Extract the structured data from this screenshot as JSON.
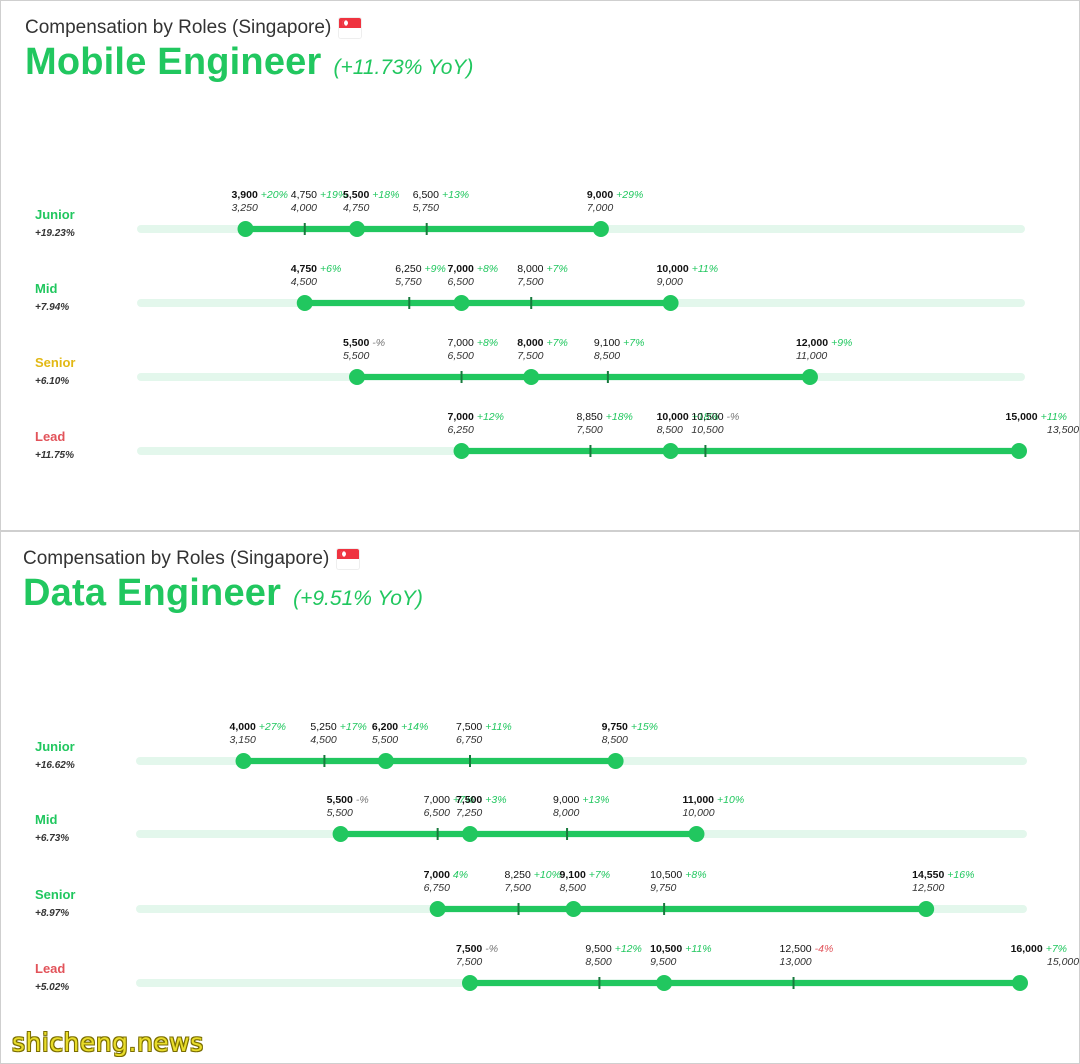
{
  "colors": {
    "green": "#21c75f",
    "track": "#e3f7ec",
    "junior": "#21c75f",
    "mid": "#21c75f",
    "senior": "#e2b814",
    "lead": "#e2535a",
    "negative": "#e2535a"
  },
  "watermark": "shicheng.news",
  "panels": [
    {
      "subtitle": "Compensation by Roles (Singapore)",
      "flag_icon": "singapore-flag-icon",
      "title": "Mobile Engineer",
      "yoy": "(+11.73% YoY)"
    },
    {
      "subtitle": "Compensation by Roles (Singapore)",
      "flag_icon": "singapore-flag-icon",
      "title": "Data Engineer",
      "yoy": "(+9.51% YoY)"
    }
  ],
  "chart_data": [
    {
      "type": "range",
      "title": "Mobile Engineer",
      "xlim": [
        2400,
        15000
      ],
      "rows": [
        {
          "level": "Junior",
          "level_color": "junior",
          "change": "+19.23%",
          "points": [
            {
              "value": 3900,
              "label": "3,900",
              "change": "+20%",
              "prev": "3,250",
              "kind": "end",
              "bold": true
            },
            {
              "value": 4750,
              "label": "4,750",
              "change": "+19%",
              "prev": "4,000",
              "kind": "tick",
              "bold": false
            },
            {
              "value": 5500,
              "label": "5,500",
              "change": "+18%",
              "prev": "4,750",
              "kind": "dot",
              "bold": true
            },
            {
              "value": 6500,
              "label": "6,500",
              "change": "+13%",
              "prev": "5,750",
              "kind": "tick",
              "bold": false
            },
            {
              "value": 9000,
              "label": "9,000",
              "change": "+29%",
              "prev": "7,000",
              "kind": "end",
              "bold": true
            }
          ]
        },
        {
          "level": "Mid",
          "level_color": "mid",
          "change": "+7.94%",
          "points": [
            {
              "value": 4750,
              "label": "4,750",
              "change": "+6%",
              "prev": "4,500",
              "kind": "end",
              "bold": true
            },
            {
              "value": 6250,
              "label": "6,250",
              "change": "+9%",
              "prev": "5,750",
              "kind": "tick",
              "bold": false
            },
            {
              "value": 7000,
              "label": "7,000",
              "change": "+8%",
              "prev": "6,500",
              "kind": "dot",
              "bold": true
            },
            {
              "value": 8000,
              "label": "8,000",
              "change": "+7%",
              "prev": "7,500",
              "kind": "tick",
              "bold": false
            },
            {
              "value": 10000,
              "label": "10,000",
              "change": "+11%",
              "prev": "9,000",
              "kind": "end",
              "bold": true
            }
          ]
        },
        {
          "level": "Senior",
          "level_color": "senior",
          "change": "+6.10%",
          "points": [
            {
              "value": 5500,
              "label": "5,500",
              "change": "-%",
              "prev": "5,500",
              "kind": "end",
              "bold": true
            },
            {
              "value": 7000,
              "label": "7,000",
              "change": "+8%",
              "prev": "6,500",
              "kind": "tick",
              "bold": false
            },
            {
              "value": 8000,
              "label": "8,000",
              "change": "+7%",
              "prev": "7,500",
              "kind": "dot",
              "bold": true
            },
            {
              "value": 9100,
              "label": "9,100",
              "change": "+7%",
              "prev": "8,500",
              "kind": "tick",
              "bold": false
            },
            {
              "value": 12000,
              "label": "12,000",
              "change": "+9%",
              "prev": "11,000",
              "kind": "end",
              "bold": true
            }
          ]
        },
        {
          "level": "Lead",
          "level_color": "lead",
          "change": "+11.75%",
          "points": [
            {
              "value": 7000,
              "label": "7,000",
              "change": "+12%",
              "prev": "6,250",
              "kind": "end",
              "bold": true
            },
            {
              "value": 8850,
              "label": "8,850",
              "change": "+18%",
              "prev": "7,500",
              "kind": "tick",
              "bold": false
            },
            {
              "value": 10000,
              "label": "10,000",
              "change": "+18%",
              "prev": "8,500",
              "kind": "dot",
              "bold": true
            },
            {
              "value": 10500,
              "label": "10,500",
              "change": "-%",
              "prev": "10,500",
              "kind": "tick",
              "bold": false
            },
            {
              "value": 15000,
              "label": "15,000",
              "change": "+11%",
              "prev": "13,500",
              "kind": "end",
              "bold": true
            }
          ]
        }
      ]
    },
    {
      "type": "range",
      "title": "Data Engineer",
      "xlim": [
        2400,
        16000
      ],
      "rows": [
        {
          "level": "Junior",
          "level_color": "junior",
          "change": "+16.62%",
          "points": [
            {
              "value": 4000,
              "label": "4,000",
              "change": "+27%",
              "prev": "3,150",
              "kind": "end",
              "bold": true
            },
            {
              "value": 5250,
              "label": "5,250",
              "change": "+17%",
              "prev": "4,500",
              "kind": "tick",
              "bold": false
            },
            {
              "value": 6200,
              "label": "6,200",
              "change": "+14%",
              "prev": "5,500",
              "kind": "dot",
              "bold": true
            },
            {
              "value": 7500,
              "label": "7,500",
              "change": "+11%",
              "prev": "6,750",
              "kind": "tick",
              "bold": false
            },
            {
              "value": 9750,
              "label": "9,750",
              "change": "+15%",
              "prev": "8,500",
              "kind": "end",
              "bold": true
            }
          ]
        },
        {
          "level": "Mid",
          "level_color": "mid",
          "change": "+6.73%",
          "points": [
            {
              "value": 5500,
              "label": "5,500",
              "change": "-%",
              "prev": "5,500",
              "kind": "end",
              "bold": true
            },
            {
              "value": 7000,
              "label": "7,000",
              "change": "+7%",
              "prev": "6,500",
              "kind": "tick",
              "bold": false
            },
            {
              "value": 7500,
              "label": "7,500",
              "change": "+3%",
              "prev": "7,250",
              "kind": "dot",
              "bold": true
            },
            {
              "value": 9000,
              "label": "9,000",
              "change": "+13%",
              "prev": "8,000",
              "kind": "tick",
              "bold": false
            },
            {
              "value": 11000,
              "label": "11,000",
              "change": "+10%",
              "prev": "10,000",
              "kind": "end",
              "bold": true
            }
          ]
        },
        {
          "level": "Senior",
          "level_color": "mid",
          "change": "+8.97%",
          "points": [
            {
              "value": 7000,
              "label": "7,000",
              "change": "4%",
              "prev": "6,750",
              "kind": "end",
              "bold": true
            },
            {
              "value": 8250,
              "label": "8,250",
              "change": "+10%",
              "prev": "7,500",
              "kind": "tick",
              "bold": false
            },
            {
              "value": 9100,
              "label": "9,100",
              "change": "+7%",
              "prev": "8,500",
              "kind": "dot",
              "bold": true
            },
            {
              "value": 10500,
              "label": "10,500",
              "change": "+8%",
              "prev": "9,750",
              "kind": "tick",
              "bold": false
            },
            {
              "value": 14550,
              "label": "14,550",
              "change": "+16%",
              "prev": "12,500",
              "kind": "end",
              "bold": true
            }
          ]
        },
        {
          "level": "Lead",
          "level_color": "lead",
          "change": "+5.02%",
          "points": [
            {
              "value": 7500,
              "label": "7,500",
              "change": "-%",
              "prev": "7,500",
              "kind": "end",
              "bold": true
            },
            {
              "value": 9500,
              "label": "9,500",
              "change": "+12%",
              "prev": "8,500",
              "kind": "tick",
              "bold": false
            },
            {
              "value": 10500,
              "label": "10,500",
              "change": "+11%",
              "prev": "9,500",
              "kind": "dot",
              "bold": true
            },
            {
              "value": 12500,
              "label": "12,500",
              "change": "-4%",
              "prev": "13,000",
              "kind": "tick",
              "bold": false
            },
            {
              "value": 16000,
              "label": "16,000",
              "change": "+7%",
              "prev": "15,000",
              "kind": "end",
              "bold": true
            }
          ]
        }
      ]
    }
  ]
}
